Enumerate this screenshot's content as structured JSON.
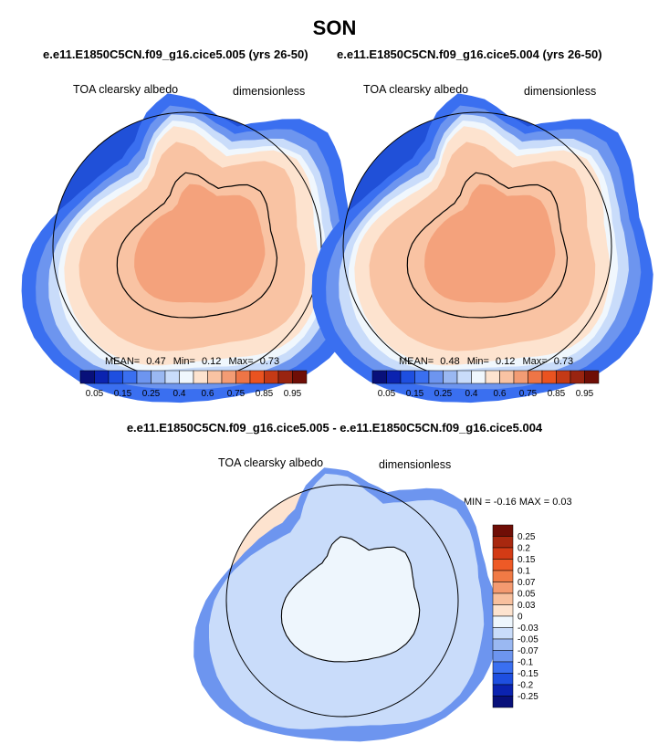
{
  "page": {
    "title": "SON",
    "subtitle_left": "e.e11.E1850C5CN.f09_g16.cice5.005 (yrs 26-50)",
    "subtitle_right": "e.e11.E1850C5CN.f09_g16.cice5.004 (yrs 26-50)",
    "diff_title": "e.e11.E1850C5CN.f09_g16.cice5.005 - e.e11.E1850C5CN.f09_g16.cice5.004"
  },
  "chart_data": [
    {
      "type": "heatmap",
      "map": "south-polar-stereographic",
      "variable_label": "TOA clearsky albedo",
      "units_label": "dimensionless",
      "stats": {
        "mean_label": "MEAN=",
        "mean": "0.47",
        "min_label": "Min=",
        "min": "0.12",
        "max_label": "Max=",
        "max": "0.73"
      },
      "colorbar": {
        "orientation": "horizontal",
        "colors": [
          "#08107a",
          "#0b23b0",
          "#1e4fe0",
          "#3a6ff0",
          "#6d95ef",
          "#9ab8f2",
          "#c9dcfa",
          "#f0f7fd",
          "#fde3cf",
          "#f9c3a3",
          "#f39c74",
          "#ee7546",
          "#ea5320",
          "#c53a16",
          "#992410",
          "#6f0e06"
        ],
        "tick_labels": [
          "0.05",
          "0.15",
          "0.25",
          "0.4",
          "0.6",
          "0.75",
          "0.85",
          "0.95"
        ]
      }
    },
    {
      "type": "heatmap",
      "map": "south-polar-stereographic",
      "variable_label": "TOA clearsky albedo",
      "units_label": "dimensionless",
      "stats": {
        "mean_label": "MEAN=",
        "mean": "0.48",
        "min_label": "Min=",
        "min": "0.12",
        "max_label": "Max=",
        "max": "0.73"
      },
      "colorbar": {
        "orientation": "horizontal",
        "colors": [
          "#08107a",
          "#0b23b0",
          "#1e4fe0",
          "#3a6ff0",
          "#6d95ef",
          "#9ab8f2",
          "#c9dcfa",
          "#f0f7fd",
          "#fde3cf",
          "#f9c3a3",
          "#f39c74",
          "#ee7546",
          "#ea5320",
          "#c53a16",
          "#992410",
          "#6f0e06"
        ],
        "tick_labels": [
          "0.05",
          "0.15",
          "0.25",
          "0.4",
          "0.6",
          "0.75",
          "0.85",
          "0.95"
        ]
      }
    },
    {
      "type": "heatmap",
      "map": "south-polar-stereographic",
      "variable_label": "TOA clearsky albedo",
      "units_label": "dimensionless",
      "stats_text": "MIN = -0.16 MAX = 0.03",
      "colorbar": {
        "orientation": "vertical",
        "colors": [
          "#6f0e06",
          "#a8280f",
          "#d33b15",
          "#ee5a26",
          "#f07a45",
          "#f49a70",
          "#f8c09e",
          "#fde3cf",
          "#eef6fd",
          "#c9dcfa",
          "#9ab8f2",
          "#6d95ef",
          "#3a6ff0",
          "#1e4fe0",
          "#0b23b0",
          "#08107a"
        ],
        "tick_labels": [
          "0.25",
          "0.2",
          "0.15",
          "0.1",
          "0.07",
          "0.05",
          "0.03",
          "0",
          "-0.03",
          "-0.05",
          "-0.07",
          "-0.1",
          "-0.15",
          "-0.2",
          "-0.25"
        ]
      }
    }
  ]
}
